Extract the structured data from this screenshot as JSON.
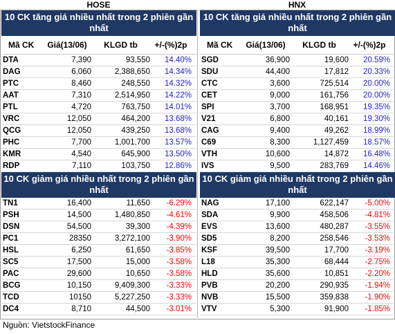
{
  "hose": {
    "title": "HOSE",
    "gainers": {
      "heading": "10 CK tăng giá nhiều nhất trong 2 phiên gần nhất",
      "columns": [
        "Mã CK",
        "Giá(13/06)",
        "KLGD tb",
        "+/-(%)2p"
      ],
      "rows": [
        {
          "code": "DTA",
          "price": "7,390",
          "volume": "93,550",
          "change": "14.40%"
        },
        {
          "code": "DAG",
          "price": "6,060",
          "volume": "2,388,650",
          "change": "14.34%"
        },
        {
          "code": "PTC",
          "price": "8,460",
          "volume": "248,550",
          "change": "14.32%"
        },
        {
          "code": "AAT",
          "price": "7,310",
          "volume": "2,514,950",
          "change": "14.22%"
        },
        {
          "code": "PTL",
          "price": "4,720",
          "volume": "763,750",
          "change": "14.01%"
        },
        {
          "code": "VRC",
          "price": "12,050",
          "volume": "464,200",
          "change": "13.68%"
        },
        {
          "code": "QCG",
          "price": "12,050",
          "volume": "439,250",
          "change": "13.68%"
        },
        {
          "code": "PHC",
          "price": "7,700",
          "volume": "1,001,700",
          "change": "13.57%"
        },
        {
          "code": "KMR",
          "price": "4,540",
          "volume": "645,900",
          "change": "13.50%"
        },
        {
          "code": "RDP",
          "price": "7,110",
          "volume": "103,750",
          "change": "12.86%"
        }
      ]
    },
    "losers": {
      "heading": "10 CK giảm giá nhiều nhất trong 2 phiên gần nhất",
      "rows": [
        {
          "code": "TN1",
          "price": "16,400",
          "volume": "11,650",
          "change": "-6.29%"
        },
        {
          "code": "PSH",
          "price": "14,500",
          "volume": "1,480,850",
          "change": "-4.61%"
        },
        {
          "code": "DSN",
          "price": "54,500",
          "volume": "39,300",
          "change": "-4.39%"
        },
        {
          "code": "PC1",
          "price": "28350",
          "volume": "3,272,100",
          "change": "-3.90%"
        },
        {
          "code": "HSL",
          "price": "6,250",
          "volume": "61,650",
          "change": "-3.85%"
        },
        {
          "code": "SC5",
          "price": "17,500",
          "volume": "15,000",
          "change": "-3.58%"
        },
        {
          "code": "PAC",
          "price": "29,600",
          "volume": "10,650",
          "change": "-3.58%"
        },
        {
          "code": "BCG",
          "price": "10,150",
          "volume": "9,409,300",
          "change": "-3.33%"
        },
        {
          "code": "TCD",
          "price": "10150",
          "volume": "5,227,250",
          "change": "-3.33%"
        },
        {
          "code": "DC4",
          "price": "8,710",
          "volume": "44,500",
          "change": "-3.01%"
        }
      ]
    }
  },
  "hnx": {
    "title": "HNX",
    "gainers": {
      "heading": "10 CK tăng giá nhiều nhất trong 2 phiên gần nhất",
      "columns": [
        "Mã CK",
        "Giá(13/06)",
        "KLGD tb",
        "+/-(%)2p"
      ],
      "rows": [
        {
          "code": "SGD",
          "price": "36,900",
          "volume": "19,600",
          "change": "20.59%"
        },
        {
          "code": "SDU",
          "price": "44,400",
          "volume": "17,812",
          "change": "20.33%"
        },
        {
          "code": "CTC",
          "price": "3,600",
          "volume": "725,514",
          "change": "20.00%"
        },
        {
          "code": "CET",
          "price": "9,000",
          "volume": "161,756",
          "change": "20.00%"
        },
        {
          "code": "SPI",
          "price": "3,700",
          "volume": "168,951",
          "change": "19.35%"
        },
        {
          "code": "V21",
          "price": "6,800",
          "volume": "40,161",
          "change": "19.30%"
        },
        {
          "code": "CAG",
          "price": "9,400",
          "volume": "49,262",
          "change": "18.99%"
        },
        {
          "code": "C69",
          "price": "8,300",
          "volume": "1,127,459",
          "change": "18.57%"
        },
        {
          "code": "VTH",
          "price": "10,600",
          "volume": "14,872",
          "change": "16.48%"
        },
        {
          "code": "IVS",
          "price": "9,500",
          "volume": "283,769",
          "change": "14.46%"
        }
      ]
    },
    "losers": {
      "heading": "10 CK giảm giá nhiều nhất trong 2 phiên gần nhất",
      "rows": [
        {
          "code": "NAG",
          "price": "17,100",
          "volume": "622,147",
          "change": "-5.00%"
        },
        {
          "code": "SDA",
          "price": "9,900",
          "volume": "458,506",
          "change": "-4.81%"
        },
        {
          "code": "EVS",
          "price": "13,600",
          "volume": "480,287",
          "change": "-3.55%"
        },
        {
          "code": "SD5",
          "price": "8,200",
          "volume": "258,546",
          "change": "-3.53%"
        },
        {
          "code": "KSF",
          "price": "39,500",
          "volume": "17,700",
          "change": "-3.19%"
        },
        {
          "code": "L18",
          "price": "35,300",
          "volume": "68,444",
          "change": "-2.75%"
        },
        {
          "code": "HLD",
          "price": "35,600",
          "volume": "10,851",
          "change": "-2.20%"
        },
        {
          "code": "PVB",
          "price": "20,200",
          "volume": "290,935",
          "change": "-1.94%"
        },
        {
          "code": "NVB",
          "price": "15,500",
          "volume": "359,838",
          "change": "-1.90%"
        },
        {
          "code": "VTV",
          "price": "5,300",
          "volume": "91,900",
          "change": "-1.85%"
        }
      ]
    }
  },
  "source": "Nguồn: VietstockFinance",
  "colors": {
    "header_bg": "#1f3864",
    "up": "#1f1fcc",
    "down": "#ff0000"
  }
}
